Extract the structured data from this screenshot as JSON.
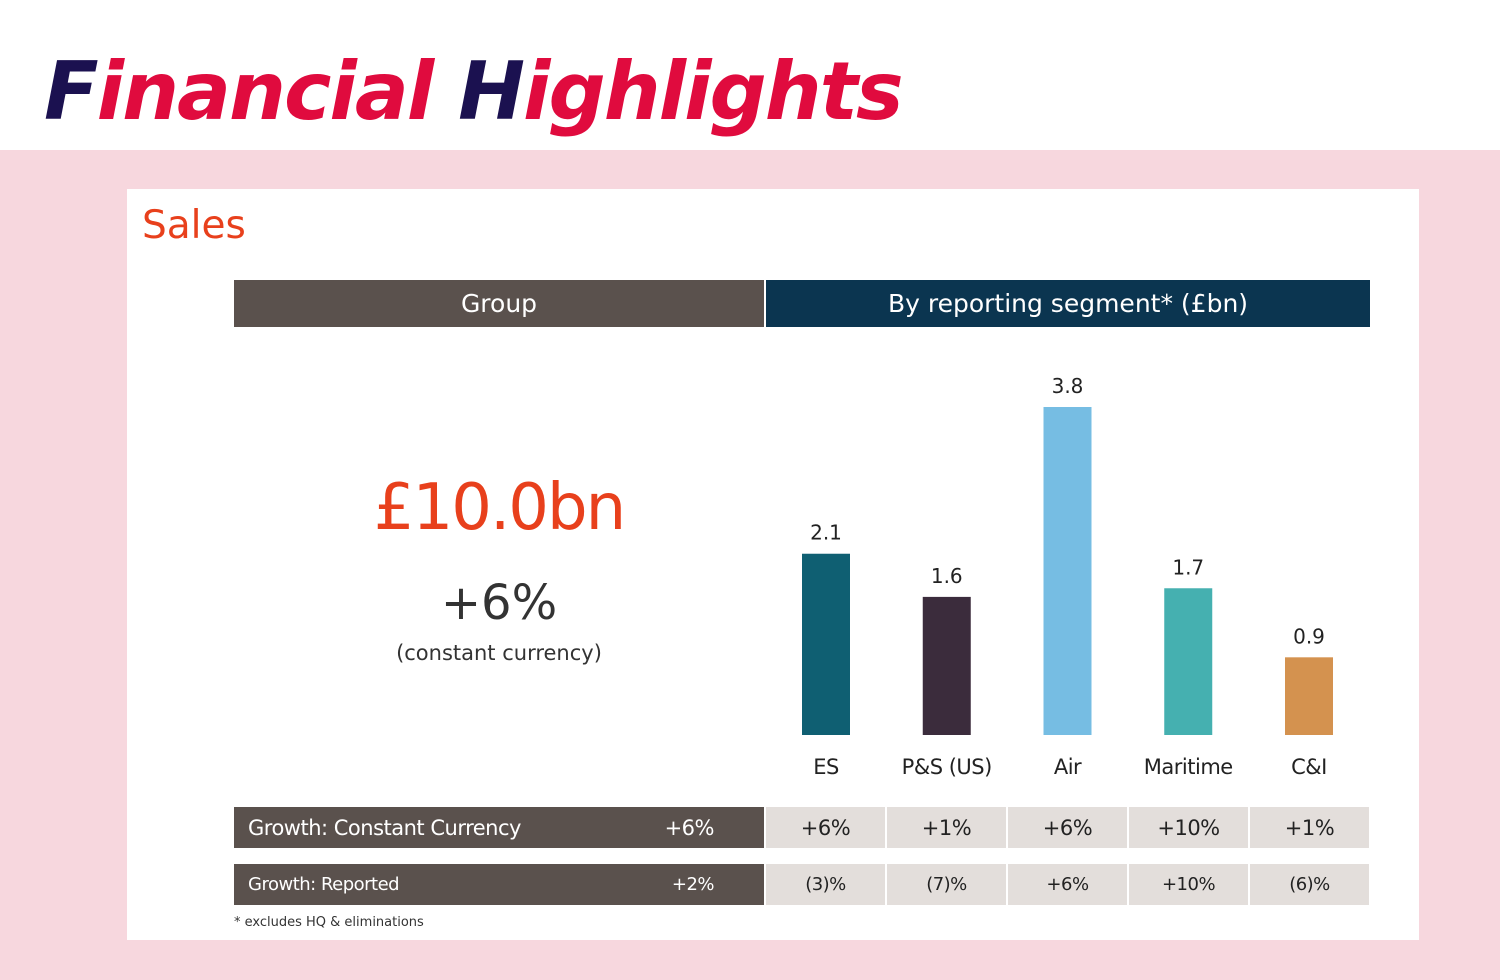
{
  "page": {
    "title_initial_1": "F",
    "title_rest_1": "inancial ",
    "title_initial_2": "H",
    "title_rest_2": "ighlights"
  },
  "slide": {
    "title": "Sales",
    "header_group": "Group",
    "header_segment": "By reporting segment* (£bn)",
    "group_sales": "£10.0bn",
    "group_growth": "+6%",
    "group_growth_note": "(constant currency)",
    "footnote": "* excludes HQ & eliminations"
  },
  "rows": {
    "constant_currency": {
      "label": "Growth: Constant Currency",
      "group_value": "+6%",
      "values": [
        "+6%",
        "+1%",
        "+6%",
        "+10%",
        "+1%"
      ]
    },
    "reported": {
      "label": "Growth: Reported",
      "group_value": "+2%",
      "values": [
        "(3)%",
        "(7)%",
        "+6%",
        "+10%",
        "(6)%"
      ]
    }
  },
  "colors": {
    "title_red": "#e00b3e",
    "title_navy": "#1b1150",
    "accent_orange": "#e8401c",
    "group_header": "#5a514d",
    "segment_header": "#0b3550",
    "background_pink": "#f7d7de"
  },
  "chart_data": {
    "type": "bar",
    "title": "By reporting segment* (£bn)",
    "categories": [
      "ES",
      "P&S (US)",
      "Air",
      "Maritime",
      "C&I"
    ],
    "values": [
      2.1,
      1.6,
      3.8,
      1.7,
      0.9
    ],
    "labels": [
      "2.1",
      "1.6",
      "3.8",
      "1.7",
      "0.9"
    ],
    "colors": [
      "#0f5f72",
      "#3b2c3c",
      "#76bde3",
      "#45b0b0",
      "#d4924f"
    ],
    "xlabel": "",
    "ylabel": "",
    "ylim": [
      0,
      3.8
    ],
    "grid": false,
    "legend": "none"
  }
}
